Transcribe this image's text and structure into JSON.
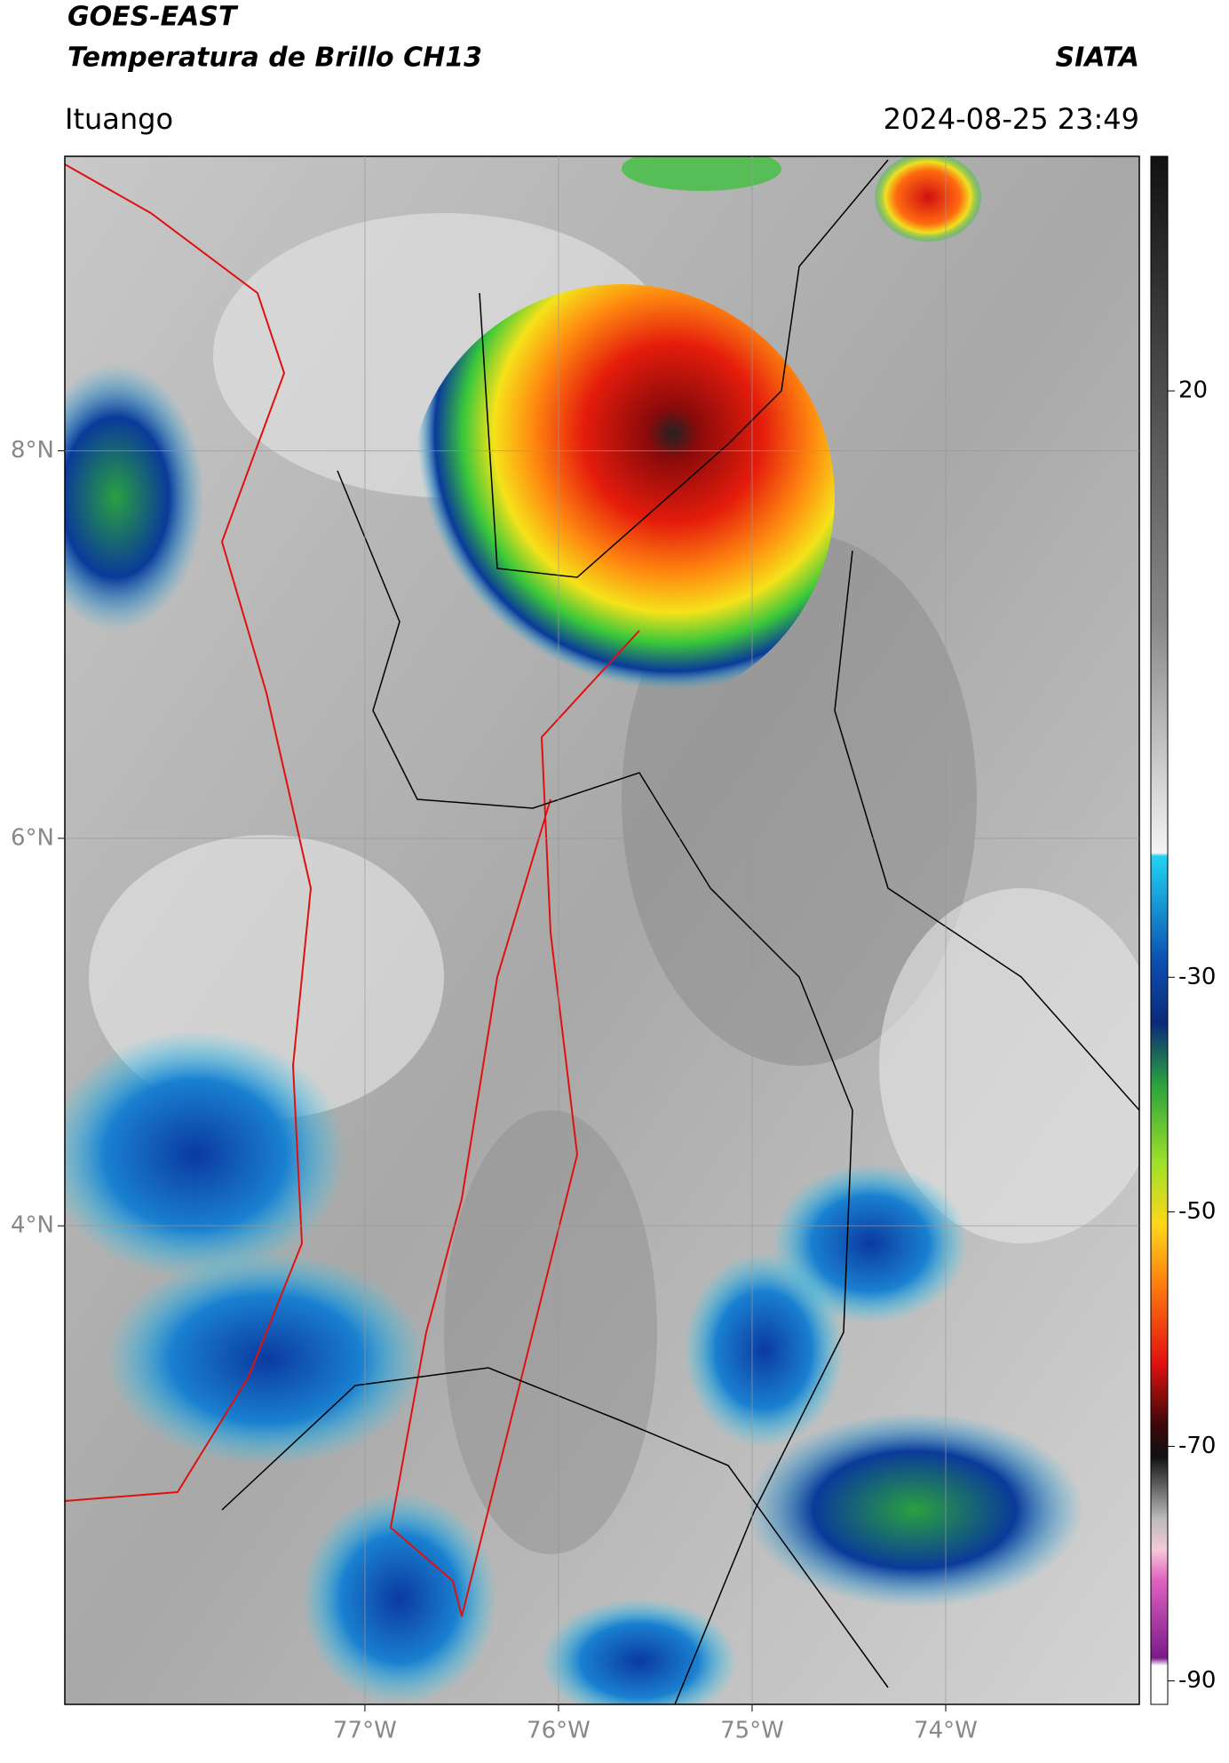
{
  "header": {
    "title_line1": "GOES-EAST",
    "title_line2": "Temperatura de Brillo CH13",
    "source": "SIATA",
    "location": "Ituango",
    "timestamp": "2024-08-25 23:49"
  },
  "map": {
    "lonlim": [
      -78.55,
      -73.0
    ],
    "latlim": [
      1.53,
      9.52
    ],
    "lon_ticks": [
      {
        "value": -77,
        "label": "77°W"
      },
      {
        "value": -76,
        "label": "76°W"
      },
      {
        "value": -75,
        "label": "75°W"
      },
      {
        "value": -74,
        "label": "74°W"
      }
    ],
    "lat_ticks": [
      {
        "value": 8,
        "label": "8°N"
      },
      {
        "value": 6,
        "label": "6°N"
      },
      {
        "value": 4,
        "label": "4°N"
      }
    ]
  },
  "colorbar": {
    "lim": [
      -92,
      40
    ],
    "ticks": [
      20,
      -30,
      -50,
      -70,
      -90
    ]
  }
}
